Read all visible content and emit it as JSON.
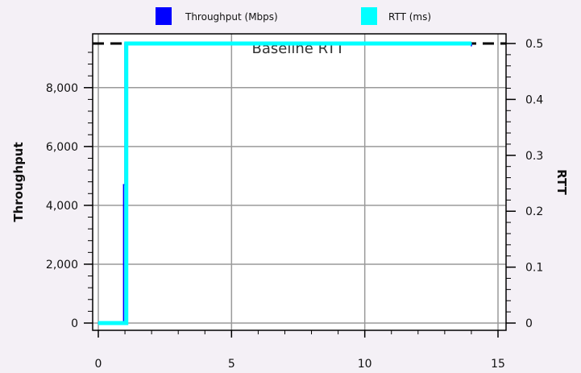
{
  "chart_data": {
    "type": "line",
    "title": "",
    "xlabel": "",
    "ylabel": "Throughput",
    "y2label": "RTT",
    "xlim": [
      0,
      15
    ],
    "ylim": [
      0,
      9500
    ],
    "y2lim": [
      0,
      0.5
    ],
    "x_ticks": [
      "0",
      "5",
      "10",
      "15"
    ],
    "y_ticks": [
      "0",
      "2,000",
      "4,000",
      "6,000",
      "8,000"
    ],
    "y2_ticks": [
      "0",
      "0.1",
      "0.2",
      "0.3",
      "0.4",
      "0.5"
    ],
    "grid": true,
    "legend_position": "top",
    "series": [
      {
        "name": "Throughput (Mbps)",
        "axis": "left",
        "color": "#0000ff",
        "x": [
          0,
          0.95,
          0.95,
          1.0,
          1.0,
          14.0,
          14.0
        ],
        "values": [
          0,
          0,
          4700,
          4700,
          9500,
          9500,
          9420
        ]
      },
      {
        "name": "RTT (ms)",
        "axis": "right",
        "color": "#00ffff",
        "x": [
          0,
          1.05,
          1.05,
          14.0
        ],
        "values": [
          0,
          0,
          0.5,
          0.5
        ]
      }
    ],
    "annotations": [
      {
        "text": "Baseline RTT",
        "axis": "right",
        "y": 0.5,
        "style": "dashed",
        "color": "#000000"
      }
    ]
  }
}
